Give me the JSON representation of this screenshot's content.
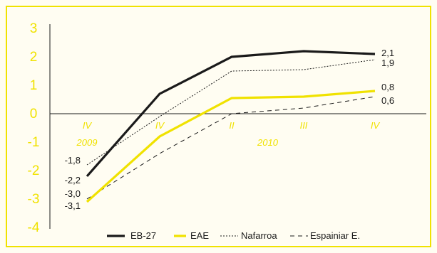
{
  "colors": {
    "background": "#fffdf2",
    "frame": "#f0e200",
    "accent_yellow": "#f0e200",
    "axis": "#1a1a1a"
  },
  "chart_data": {
    "type": "line",
    "x": [
      "IV",
      "IV",
      "II",
      "III",
      "IV"
    ],
    "years": [
      {
        "label": "2009",
        "at_index": 0
      },
      {
        "label": "2010",
        "at_index": 2.5
      }
    ],
    "ylim": [
      -4,
      3
    ],
    "yticks": [
      3,
      2,
      1,
      0,
      -1,
      -2,
      -3,
      -4
    ],
    "ytick_labels": [
      "3",
      "2",
      "1",
      "0",
      "-1",
      "-2",
      "-3",
      "-4"
    ],
    "grid": false,
    "legend_position": "bottom",
    "series": [
      {
        "name": "EB-27",
        "values": [
          -2.2,
          0.7,
          2.0,
          2.2,
          2.1
        ],
        "color": "#1a1a1a",
        "style": "solid-thick",
        "start_label": "-2,2",
        "end_label": "2,1"
      },
      {
        "name": "EAE",
        "values": [
          -3.1,
          -0.8,
          0.55,
          0.6,
          0.8
        ],
        "color": "#f0e200",
        "style": "solid-thick",
        "start_label": "-3,1",
        "end_label": "0,8"
      },
      {
        "name": "Nafarroa",
        "values": [
          -1.8,
          -0.1,
          1.5,
          1.55,
          1.9
        ],
        "color": "#1a1a1a",
        "style": "dotted",
        "start_label": "-1,8",
        "end_label": "1,9"
      },
      {
        "name": "Espainiar E.",
        "values": [
          -3.0,
          -1.4,
          0.0,
          0.2,
          0.6
        ],
        "color": "#1a1a1a",
        "style": "dashed",
        "start_label": "-3,0",
        "end_label": "0,6"
      }
    ]
  }
}
